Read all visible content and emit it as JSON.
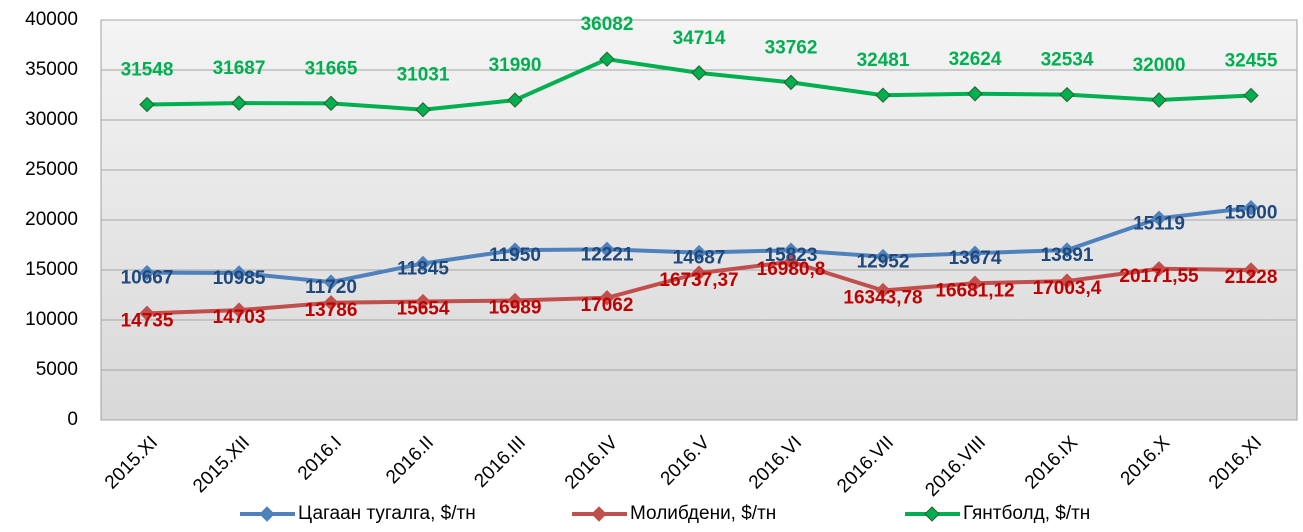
{
  "chart_data": {
    "type": "line",
    "categories": [
      "2015.XI",
      "2015.XII",
      "2016.I",
      "2016.II",
      "2016.III",
      "2016.IV",
      "2016.V",
      "2016.VI",
      "2016.VII",
      "2016.VIII",
      "2016.IX",
      "2016.X",
      "2016.XI"
    ],
    "series": [
      {
        "name": "Цагаан тугалга, $/тн",
        "color": "#4f81bd",
        "label_color": "#c00000",
        "values": [
          14735,
          14703,
          13786,
          15654,
          16989,
          17062,
          16737.37,
          16980.8,
          16343.78,
          16681.12,
          17003.4,
          20171.55,
          21228
        ],
        "value_labels": [
          "14735",
          "14703",
          "13786",
          "15654",
          "16989",
          "17062",
          "16737,37",
          "16980,8",
          "16343,78",
          "16681,12",
          "17003,4",
          "20171,55",
          "21228"
        ]
      },
      {
        "name": "Молибдени, $/тн",
        "color": "#c0504d",
        "label_color": "#1f497d",
        "values": [
          10667,
          10985,
          11720,
          11845,
          11950,
          12221,
          14687,
          15823,
          12952,
          13674,
          13891,
          15119,
          15000
        ]
      },
      {
        "name": "Гянтболд, $/тн",
        "color": "#00b050",
        "label_color": "#00b050",
        "values": [
          31548,
          31687,
          31665,
          31031,
          31990,
          36082,
          34714,
          33762,
          32481,
          32624,
          32534,
          32000,
          32455
        ]
      }
    ],
    "ylim": [
      0,
      40000
    ],
    "yticks": [
      0,
      5000,
      10000,
      15000,
      20000,
      25000,
      30000,
      35000,
      40000
    ],
    "grid": true
  }
}
